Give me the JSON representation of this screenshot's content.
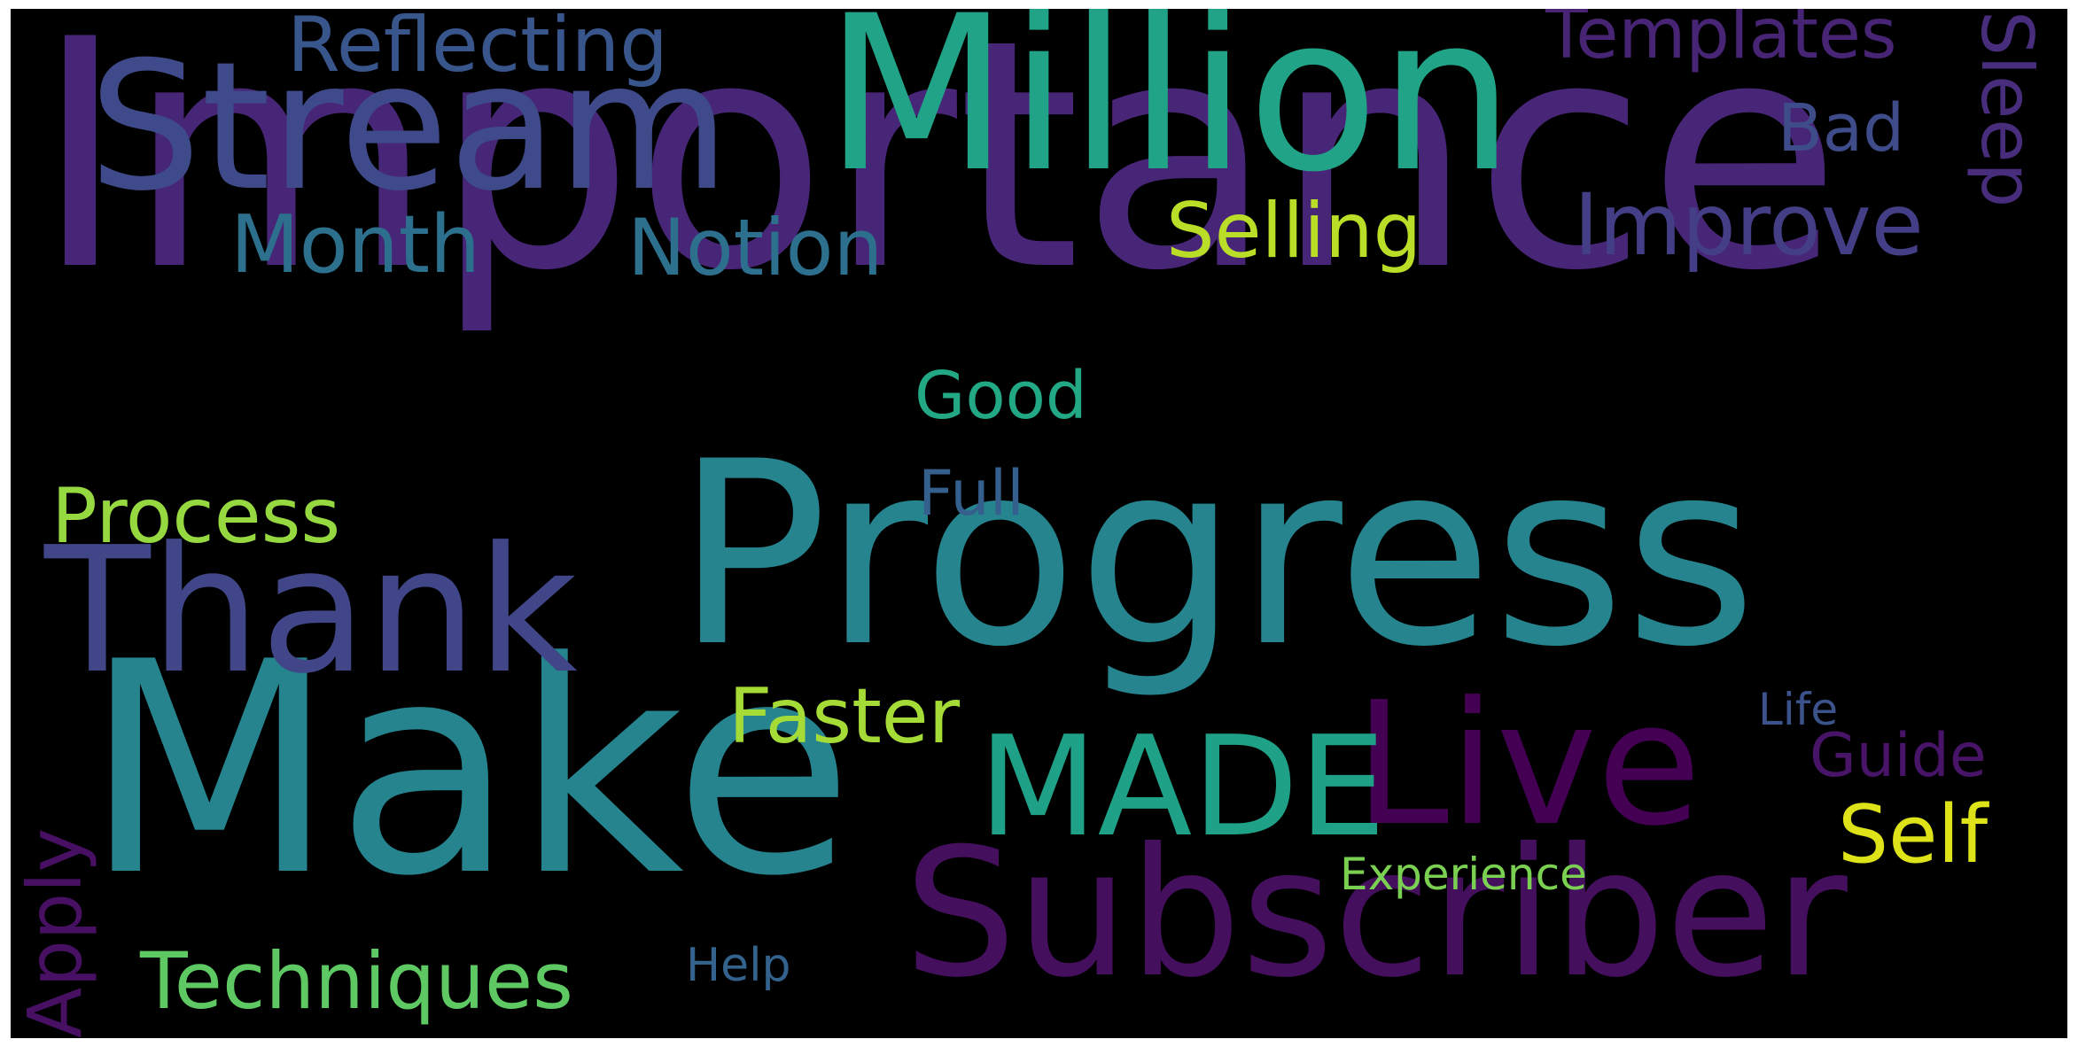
{
  "words": [
    {
      "text": "Importance",
      "color": "#482677"
    },
    {
      "text": "Progress",
      "color": "#25848e"
    },
    {
      "text": "Make",
      "color": "#25848e"
    },
    {
      "text": "Million",
      "color": "#20a386"
    },
    {
      "text": "Stream",
      "color": "#3f4a8a"
    },
    {
      "text": "Subscriber",
      "color": "#440f5c"
    },
    {
      "text": "Thank",
      "color": "#404688"
    },
    {
      "text": "Live",
      "color": "#440154"
    },
    {
      "text": "MADE",
      "color": "#1fa187"
    },
    {
      "text": "Reflecting",
      "color": "#39568c"
    },
    {
      "text": "Templates",
      "color": "#482475"
    },
    {
      "text": "Sleep",
      "color": "#472d7b"
    },
    {
      "text": "Improve",
      "color": "#433e85"
    },
    {
      "text": "Bad",
      "color": "#3e4c8a"
    },
    {
      "text": "Month",
      "color": "#2d708e"
    },
    {
      "text": "Notion",
      "color": "#2d708e"
    },
    {
      "text": "Selling",
      "color": "#bade28"
    },
    {
      "text": "Good",
      "color": "#22a884"
    },
    {
      "text": "Process",
      "color": "#95d840"
    },
    {
      "text": "Full",
      "color": "#35608d"
    },
    {
      "text": "Faster",
      "color": "#a5db36"
    },
    {
      "text": "Apply",
      "color": "#471063"
    },
    {
      "text": "Guide",
      "color": "#481467"
    },
    {
      "text": "Life",
      "color": "#3b528b"
    },
    {
      "text": "Self",
      "color": "#dde318"
    },
    {
      "text": "Experience",
      "color": "#7ad151"
    },
    {
      "text": "Techniques",
      "color": "#5ec962"
    },
    {
      "text": "Help",
      "color": "#33638d"
    }
  ]
}
